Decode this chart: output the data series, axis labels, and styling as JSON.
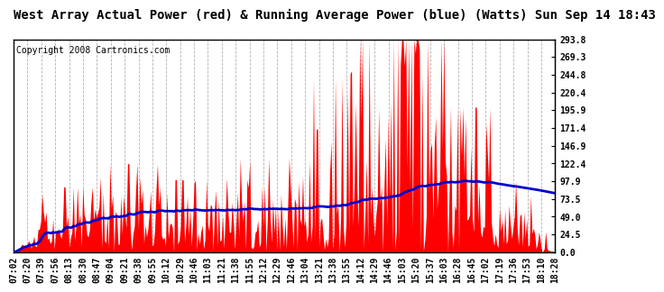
{
  "title": "West Array Actual Power (red) & Running Average Power (blue) (Watts) Sun Sep 14 18:43",
  "copyright": "Copyright 2008 Cartronics.com",
  "bg_color": "#ffffff",
  "plot_bg_color": "#ffffff",
  "ymin": 0.0,
  "ymax": 293.8,
  "yticks": [
    0.0,
    24.5,
    49.0,
    73.5,
    97.9,
    122.4,
    146.9,
    171.4,
    195.9,
    220.4,
    244.8,
    269.3,
    293.8
  ],
  "xtick_labels": [
    "07:02",
    "07:20",
    "07:39",
    "07:56",
    "08:13",
    "08:30",
    "08:47",
    "09:04",
    "09:21",
    "09:38",
    "09:55",
    "10:12",
    "10:29",
    "10:46",
    "11:03",
    "11:21",
    "11:38",
    "11:55",
    "12:12",
    "12:29",
    "12:46",
    "13:04",
    "13:21",
    "13:38",
    "13:55",
    "14:12",
    "14:29",
    "14:46",
    "15:03",
    "15:20",
    "15:37",
    "16:03",
    "16:28",
    "16:45",
    "17:02",
    "17:19",
    "17:36",
    "17:53",
    "18:10",
    "18:28"
  ],
  "fill_color": "#ff0000",
  "line_color": "#0000cc",
  "grid_color": "#aaaaaa",
  "title_fontsize": 10,
  "copyright_fontsize": 7,
  "tick_fontsize": 7
}
